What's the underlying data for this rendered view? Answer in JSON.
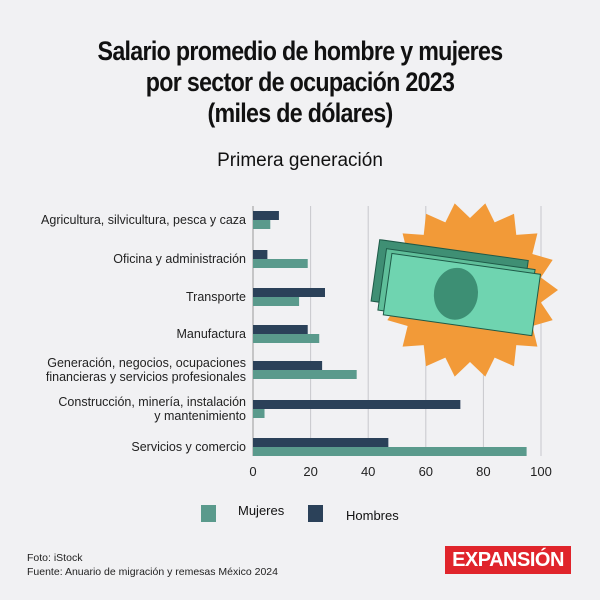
{
  "title_lines": [
    "Salario promedio de hombre y mujeres",
    "por sector de ocupación 2023",
    "(miles de dólares)"
  ],
  "subtitle": "Primera generación",
  "chart_data": {
    "type": "bar",
    "orientation": "horizontal",
    "title": "Salario promedio de hombre y mujeres por sector de ocupación 2023 (miles de dólares)",
    "subtitle": "Primera generación",
    "categories": [
      [
        "Agricultura, silvicultura, pesca y caza"
      ],
      [
        "Oficina y administración"
      ],
      [
        "Transporte"
      ],
      [
        "Manufactura"
      ],
      [
        "Generación, negocios, ocupaciones",
        "financieras y servicios profesionales"
      ],
      [
        "Construcción, minería, instalación",
        "y mantenimiento"
      ],
      [
        "Servicios y comercio"
      ]
    ],
    "series": [
      {
        "name": "Hombres",
        "color": "#2b4159",
        "values": [
          9,
          5,
          25,
          19,
          24,
          72,
          47
        ]
      },
      {
        "name": "Mujeres",
        "color": "#5a9a8c",
        "values": [
          6,
          19,
          16,
          23,
          36,
          4,
          95
        ]
      }
    ],
    "xlim": [
      0,
      100
    ],
    "xticks": [
      "0",
      "20",
      "40",
      "60",
      "80",
      "100"
    ],
    "grid": true,
    "legend_position": "bottom"
  },
  "legend": {
    "mujeres": "Mujeres",
    "hombres": "Hombres"
  },
  "footer": {
    "photo": "Foto: iStock",
    "source": "Fuente:  Anuario de migración y remesas México 2024"
  },
  "logo": "EXPANSIÓN",
  "colors": {
    "background": "#f1f1f3",
    "burst": "#f29a38",
    "bill": "#6fd4b0",
    "brand": "#e0242b"
  }
}
